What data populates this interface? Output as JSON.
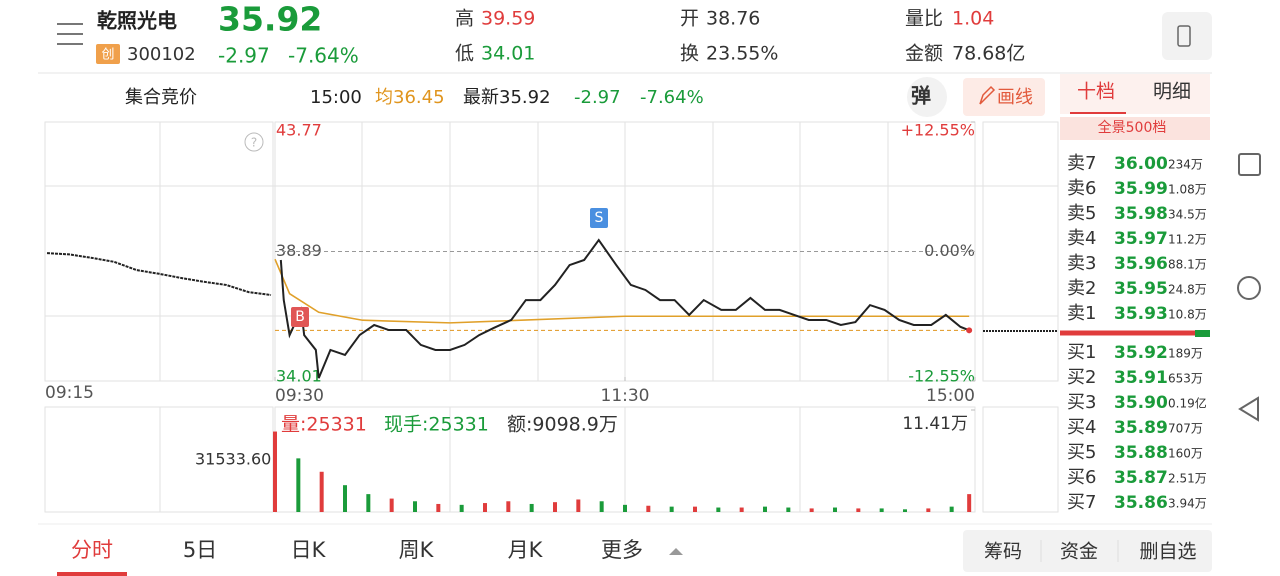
{
  "header": {
    "name": "乾照光电",
    "badge": "创",
    "code": "300102",
    "price": "35.92",
    "change": "-2.97",
    "change_pct": "-7.64%",
    "stats": [
      {
        "label": "高",
        "value": "39.59"
      },
      {
        "label": "低",
        "value": "34.01"
      },
      {
        "label": "开",
        "value": "38.76"
      },
      {
        "label": "换",
        "value": "23.55%"
      },
      {
        "label": "量比",
        "value": "1.04"
      },
      {
        "label": "金额",
        "value": "78.68亿"
      }
    ]
  },
  "subbar": {
    "auction": "集合竞价",
    "time": "15:00",
    "avg": "均36.45",
    "latest": "最新35.92",
    "change": "-2.97",
    "change_pct": "-7.64%",
    "popup_button": "弹",
    "draw_button": "画线"
  },
  "book_tabs": {
    "tabs": [
      "十档",
      "明细"
    ],
    "depth_button": "全景500档"
  },
  "chart": {
    "ylim": [
      34.01,
      43.77
    ],
    "yticks": [
      34.01,
      38.89,
      43.77
    ],
    "y2lim": [
      -12.55,
      12.55
    ],
    "y2ticks": [
      {
        "value": -12.55,
        "label": "-12.55%"
      },
      {
        "value": 0,
        "label": "0.00%"
      },
      {
        "value": 12.55,
        "label": "+12.55%"
      }
    ],
    "xlim": [
      0,
      240
    ],
    "xticks": [
      {
        "value": 0,
        "label": "09:30"
      },
      {
        "value": 120,
        "label": "11:30"
      },
      {
        "value": 240,
        "label": "15:00"
      }
    ],
    "auction_time": "09:15",
    "auction_values": [
      38.83,
      38.78,
      38.65,
      38.5,
      38.19,
      38.05,
      37.89,
      37.75,
      37.63,
      37.36,
      37.25
    ],
    "price_x": [
      2,
      3,
      5,
      9,
      10,
      14,
      15,
      19,
      24,
      29,
      34,
      39,
      45,
      50,
      55,
      60,
      65,
      70,
      75,
      81,
      86,
      91,
      96,
      101,
      106,
      111,
      117,
      122,
      127,
      132,
      137,
      142,
      147,
      153,
      158,
      163,
      168,
      173,
      178,
      183,
      189,
      194,
      199,
      204,
      209,
      214,
      219,
      225,
      230,
      235,
      238
    ],
    "price_values": [
      38.57,
      37.06,
      35.74,
      36.69,
      35.74,
      35.18,
      34.12,
      35.18,
      34.99,
      35.74,
      36.12,
      35.93,
      35.93,
      35.37,
      35.18,
      35.18,
      35.37,
      35.74,
      36.01,
      36.31,
      37.06,
      37.06,
      37.63,
      38.38,
      38.57,
      39.32,
      38.38,
      37.63,
      37.44,
      37.06,
      37.06,
      36.5,
      37.06,
      36.69,
      36.69,
      37.14,
      36.69,
      36.69,
      36.5,
      36.31,
      36.31,
      36.12,
      36.23,
      36.87,
      36.69,
      36.31,
      36.12,
      36.12,
      36.5,
      36.05,
      35.92
    ],
    "avg_x": [
      0,
      5,
      15,
      30,
      60,
      120,
      180,
      238
    ],
    "avg_values": [
      38.6,
      37.3,
      36.6,
      36.3,
      36.2,
      36.45,
      36.45,
      36.45
    ],
    "sell_marker": "S",
    "buy_marker": "B",
    "volume_label": "量:25331",
    "hand_label": "现手:25331",
    "amount_label": "额:9098.9万",
    "volume_ylim": [
      0,
      114100
    ],
    "volume_yticks": [
      {
        "value": 114100,
        "label": "11.41万"
      }
    ],
    "volume_ma_label": "31533.60",
    "volume_x": [
      0,
      8,
      16,
      24,
      32,
      40,
      48,
      56,
      64,
      72,
      80,
      88,
      96,
      104,
      112,
      120,
      128,
      136,
      144,
      152,
      160,
      168,
      176,
      184,
      192,
      200,
      208,
      216,
      224,
      232,
      238
    ],
    "volume_values": [
      90000,
      60000,
      45000,
      30000,
      20000,
      15000,
      12000,
      9000,
      8000,
      10000,
      12000,
      9000,
      11000,
      14000,
      12000,
      8000,
      7000,
      6000,
      6000,
      5000,
      5000,
      6000,
      5000,
      4000,
      5000,
      4000,
      4000,
      3000,
      4000,
      6000,
      20000
    ],
    "volume_colors": [
      "#e03c3c",
      "#1a9b3a",
      "#e03c3c",
      "#1a9b3a",
      "#1a9b3a",
      "#e03c3c",
      "#1a9b3a",
      "#e03c3c",
      "#1a9b3a",
      "#e03c3c",
      "#e03c3c",
      "#1a9b3a",
      "#e03c3c",
      "#e03c3c",
      "#1a9b3a",
      "#1a9b3a",
      "#e03c3c",
      "#1a9b3a",
      "#e03c3c",
      "#1a9b3a",
      "#e03c3c",
      "#1a9b3a",
      "#1a9b3a",
      "#e03c3c",
      "#1a9b3a",
      "#e03c3c",
      "#1a9b3a",
      "#1a9b3a",
      "#e03c3c",
      "#1a9b3a",
      "#e03c3c"
    ]
  },
  "order_book": {
    "sell": [
      [
        "卖7",
        "36.00",
        "234万"
      ],
      [
        "卖6",
        "35.99",
        "1.08万"
      ],
      [
        "卖5",
        "35.98",
        "34.5万"
      ],
      [
        "卖4",
        "35.97",
        "11.2万"
      ],
      [
        "卖3",
        "35.96",
        "88.1万"
      ],
      [
        "卖2",
        "35.95",
        "24.8万"
      ],
      [
        "卖1",
        "35.93",
        "10.8万"
      ]
    ],
    "buy": [
      [
        "买1",
        "35.92",
        "189万"
      ],
      [
        "买2",
        "35.91",
        "653万"
      ],
      [
        "买3",
        "35.90",
        "0.19亿"
      ],
      [
        "买4",
        "35.89",
        "707万"
      ],
      [
        "买5",
        "35.88",
        "160万"
      ],
      [
        "买6",
        "35.87",
        "2.51万"
      ],
      [
        "买7",
        "35.86",
        "3.94万"
      ]
    ]
  },
  "bottom_tabs": [
    "分时",
    "5日",
    "日K",
    "周K",
    "月K",
    "更多"
  ],
  "bottom_buttons": [
    "筹码",
    "资金",
    "删自选"
  ]
}
